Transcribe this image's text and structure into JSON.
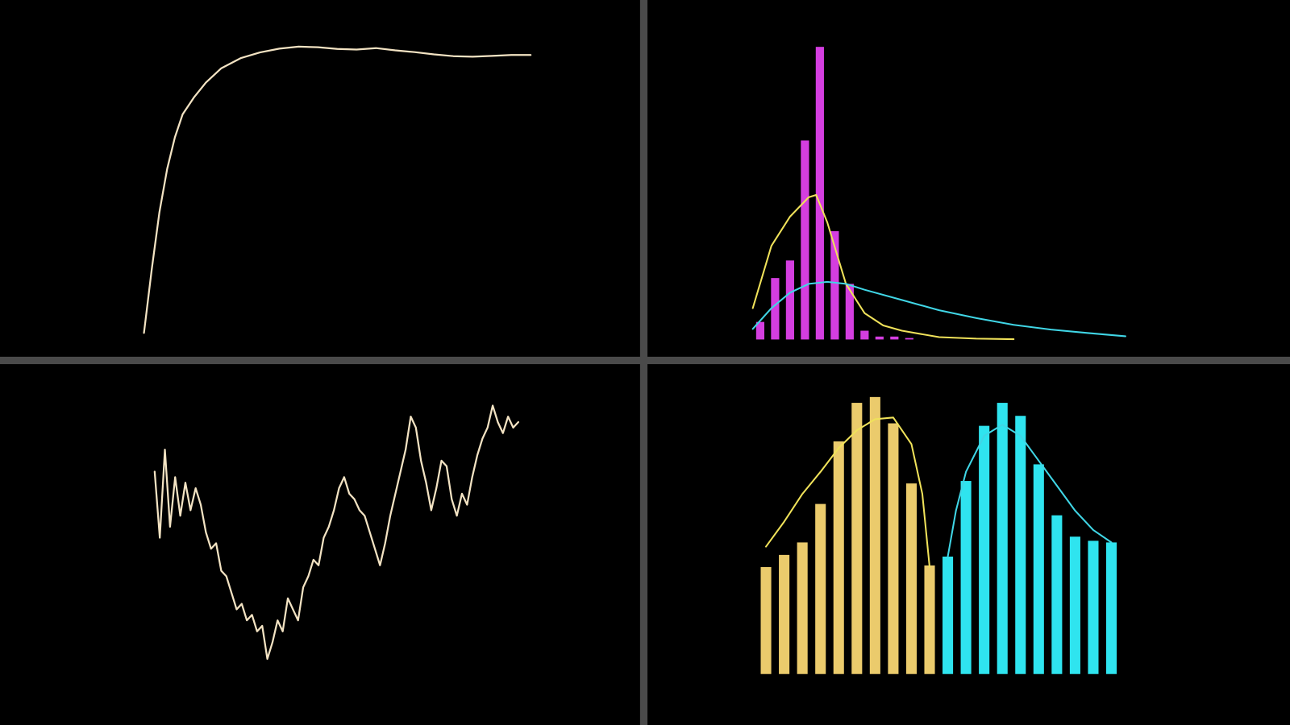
{
  "chart_data": [
    {
      "type": "line",
      "color": "#f3e3c3",
      "x": [
        0,
        2,
        4,
        6,
        8,
        10,
        13,
        16,
        20,
        25,
        30,
        35,
        40,
        45,
        50,
        55,
        60,
        65,
        70,
        75,
        80,
        85,
        90,
        95,
        100
      ],
      "values": [
        0,
        22,
        42,
        57,
        68,
        76,
        82,
        87,
        92,
        95.5,
        97.5,
        98.8,
        99.5,
        99.3,
        98.7,
        98.5,
        99,
        98.2,
        97.6,
        96.8,
        96.2,
        96,
        96.3,
        96.6,
        96.6
      ],
      "xlim": [
        0,
        100
      ],
      "ylim": [
        0,
        100
      ]
    },
    {
      "type": "histogram",
      "color": "#d43ee0",
      "bins": [
        0,
        4,
        8,
        12,
        16,
        20,
        24,
        28,
        32,
        36,
        40,
        44
      ],
      "values": [
        6,
        21,
        27,
        68,
        100,
        37,
        19,
        3,
        1,
        1,
        0.5
      ],
      "lines": [
        {
          "color": "#f0e25a",
          "x": [
            0,
            5,
            10,
            15,
            17,
            20,
            25,
            30,
            35,
            40,
            50,
            60,
            70
          ],
          "values": [
            10.7,
            32,
            42,
            48.6,
            49.4,
            40,
            19,
            9,
            4.8,
            3,
            0.8,
            0.3,
            0.1
          ]
        },
        {
          "color": "#40d6e6",
          "x": [
            0,
            5,
            10,
            15,
            20,
            25,
            30,
            40,
            50,
            60,
            70,
            80,
            90,
            100
          ],
          "values": [
            3.6,
            10.7,
            16,
            19,
            19.7,
            19,
            17,
            13.5,
            10,
            7.3,
            5,
            3.4,
            2.2,
            1.1
          ]
        }
      ],
      "xlim": [
        0,
        100
      ],
      "ylim": [
        0,
        100
      ]
    },
    {
      "type": "line",
      "color": "#f3e3c3",
      "values": [
        72,
        48,
        80,
        52,
        70,
        56,
        68,
        58,
        66,
        60,
        50,
        44,
        46,
        36,
        34,
        28,
        22,
        24,
        18,
        20,
        14,
        16,
        4,
        10,
        18,
        14,
        26,
        22,
        18,
        30,
        34,
        40,
        38,
        48,
        52,
        58,
        66,
        70,
        64,
        62,
        58,
        56,
        50,
        44,
        38,
        46,
        56,
        64,
        72,
        80,
        92,
        88,
        76,
        68,
        58,
        66,
        76,
        74,
        62,
        56,
        64,
        60,
        70,
        78,
        84,
        88,
        96,
        90,
        86,
        92,
        88,
        90
      ],
      "ylim": [
        0,
        100
      ]
    },
    {
      "type": "bar",
      "series": [
        {
          "color": "#ebcb6c",
          "values": [
            38.6,
            43,
            47.5,
            61.4,
            84,
            97.9,
            100,
            90.5,
            68.8,
            39.2,
            null,
            null,
            null,
            null,
            null,
            null,
            null,
            null,
            null,
            null
          ]
        },
        {
          "color": "#2fe4ef",
          "values": [
            null,
            null,
            null,
            null,
            null,
            null,
            null,
            null,
            null,
            null,
            42.4,
            69.7,
            89.6,
            97.9,
            93.2,
            75.7,
            57.3,
            49.6,
            48.1,
            47.5
          ]
        }
      ],
      "lines": [
        {
          "color": "#f0e25a",
          "x": [
            0,
            1,
            2,
            3,
            4,
            5,
            6,
            7,
            8,
            8.6,
            9
          ],
          "values": [
            46,
            55,
            65,
            73,
            81.6,
            88,
            92,
            92.6,
            83,
            65,
            38.6
          ]
        },
        {
          "color": "#40d6e6",
          "x": [
            10,
            10.45,
            11,
            12,
            13,
            14,
            15,
            16,
            17,
            18,
            19
          ],
          "values": [
            42.4,
            59,
            73,
            86,
            90,
            86,
            77,
            68,
            59,
            52,
            47.5
          ]
        }
      ],
      "ylim": [
        0,
        100
      ]
    }
  ]
}
